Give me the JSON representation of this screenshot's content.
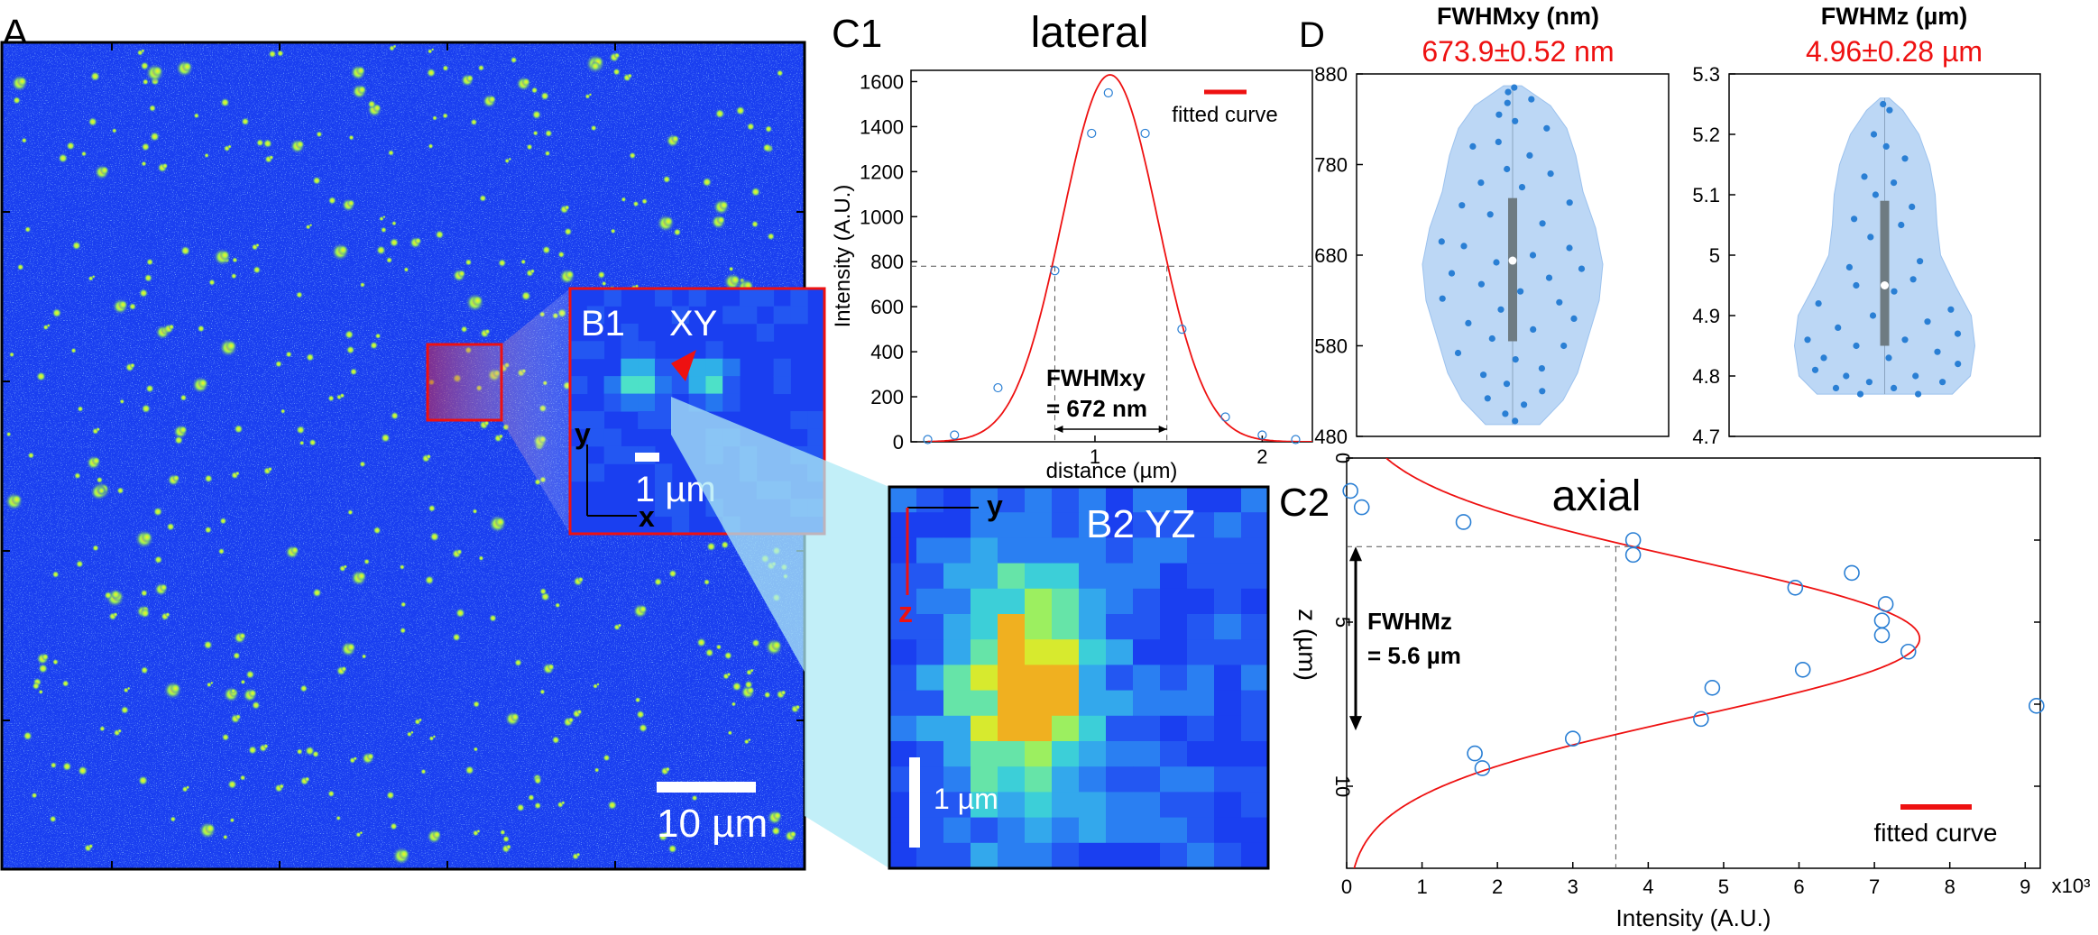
{
  "panels": {
    "a_label": "A",
    "b1_label": "B1",
    "b1_plane": "XY",
    "b1_axis_y": "y",
    "b1_axis_x": "x",
    "b1_scale": "1 µm",
    "b2_label": "B2 YZ",
    "b2_axis_y": "y",
    "b2_axis_z": "z",
    "b2_scale": "1 µm",
    "a_scale": "10 µm",
    "c1_label": "C1",
    "c2_label": "C2",
    "d_label": "D"
  },
  "colors": {
    "image_background": "#1a3ff0",
    "inset_border": "#ee1111",
    "fit_curve": "#ee1111",
    "marker": "#2a7fd4",
    "violin_fill": "#bcd7f5",
    "highlight_text": "#ee1111",
    "box_whisker": "#6e7b82"
  },
  "chart_data": [
    {
      "id": "c1",
      "type": "scatter",
      "title": "lateral",
      "xlabel": "distance (µm)",
      "ylabel": "Intensity (A.U.)",
      "xlim": [
        -0.1,
        2.3
      ],
      "ylim": [
        0,
        1650
      ],
      "xticks": [
        1,
        2
      ],
      "yticks": [
        0,
        200,
        400,
        600,
        800,
        1000,
        1200,
        1400,
        1600
      ],
      "legend": "fitted curve",
      "legend_position": "top-right",
      "half_max": 780,
      "fwhm_left": 0.76,
      "fwhm_right": 1.43,
      "annotation_line1": "FWHMxy",
      "annotation_line2": "= 672 nm",
      "points": [
        {
          "x": 0.0,
          "y": 10
        },
        {
          "x": 0.16,
          "y": 30
        },
        {
          "x": 0.42,
          "y": 240
        },
        {
          "x": 0.76,
          "y": 760
        },
        {
          "x": 0.98,
          "y": 1370
        },
        {
          "x": 1.08,
          "y": 1550
        },
        {
          "x": 1.3,
          "y": 1370
        },
        {
          "x": 1.52,
          "y": 500
        },
        {
          "x": 1.78,
          "y": 110
        },
        {
          "x": 2.0,
          "y": 30
        },
        {
          "x": 2.2,
          "y": 10
        }
      ],
      "fit": {
        "amplitude": 1630,
        "center": 1.09,
        "fwhm": 0.672
      }
    },
    {
      "id": "c2",
      "type": "scatter",
      "title": "axial",
      "xlabel": "Intensity (A.U.)",
      "ylabel": "z (µm)",
      "x_multiplier": "x10³",
      "xlim": [
        0,
        9.2
      ],
      "ylim": [
        0,
        12.5
      ],
      "xticks": [
        0,
        1,
        2,
        3,
        4,
        5,
        6,
        7,
        8,
        9
      ],
      "yticks": [
        0,
        5,
        10
      ],
      "legend": "fitted curve",
      "legend_position": "bottom-right",
      "annotation_line1": "FWHMz",
      "annotation_line2": "= 5.6 µm",
      "fwhm_top": 2.7,
      "fwhm_bottom": 8.3,
      "half_max_x": 3.57,
      "points": [
        {
          "x": 0.05,
          "y": 1.0
        },
        {
          "x": 0.2,
          "y": 1.5
        },
        {
          "x": 1.55,
          "y": 1.95
        },
        {
          "x": 3.8,
          "y": 2.5
        },
        {
          "x": 3.8,
          "y": 2.95
        },
        {
          "x": 6.7,
          "y": 3.5
        },
        {
          "x": 5.95,
          "y": 3.95
        },
        {
          "x": 7.15,
          "y": 4.45
        },
        {
          "x": 7.1,
          "y": 4.95
        },
        {
          "x": 7.1,
          "y": 5.4
        },
        {
          "x": 7.45,
          "y": 5.9
        },
        {
          "x": 6.05,
          "y": 6.45
        },
        {
          "x": 4.85,
          "y": 7.0
        },
        {
          "x": 9.15,
          "y": 7.55
        },
        {
          "x": 4.7,
          "y": 7.95
        },
        {
          "x": 3.0,
          "y": 8.55
        },
        {
          "x": 1.7,
          "y": 9.0
        },
        {
          "x": 1.8,
          "y": 9.45
        }
      ],
      "fit": {
        "amplitude": 7.6,
        "center": 5.5,
        "fwhm": 5.6
      }
    },
    {
      "id": "d1",
      "type": "violin",
      "title": "FWHMxy (nm)",
      "value_text": "673.9±0.52 nm",
      "ylim": [
        480,
        880
      ],
      "yticks": [
        480,
        580,
        680,
        780,
        880
      ],
      "median": 674,
      "q1": 585,
      "q3": 743,
      "min": 493,
      "max": 867,
      "profile": [
        {
          "y": 493,
          "w": 0.3
        },
        {
          "y": 520,
          "w": 0.56
        },
        {
          "y": 550,
          "w": 0.72
        },
        {
          "y": 590,
          "w": 0.84
        },
        {
          "y": 630,
          "w": 0.96
        },
        {
          "y": 670,
          "w": 1.0
        },
        {
          "y": 710,
          "w": 0.92
        },
        {
          "y": 750,
          "w": 0.78
        },
        {
          "y": 790,
          "w": 0.7
        },
        {
          "y": 820,
          "w": 0.6
        },
        {
          "y": 845,
          "w": 0.42
        },
        {
          "y": 867,
          "w": 0.1
        }
      ],
      "points": [
        {
          "x": -0.55,
          "y": 860
        },
        {
          "x": 0.2,
          "y": 865
        },
        {
          "x": -0.15,
          "y": 848
        },
        {
          "x": 0.55,
          "y": 852
        },
        {
          "x": -0.4,
          "y": 835
        },
        {
          "x": 0.05,
          "y": 828
        },
        {
          "x": 0.7,
          "y": 820
        },
        {
          "x": -0.7,
          "y": 800
        },
        {
          "x": -0.25,
          "y": 805
        },
        {
          "x": 0.3,
          "y": 790
        },
        {
          "x": -0.1,
          "y": 775
        },
        {
          "x": 0.6,
          "y": 770
        },
        {
          "x": -0.5,
          "y": 760
        },
        {
          "x": 0.15,
          "y": 755
        },
        {
          "x": 0.9,
          "y": 738
        },
        {
          "x": -0.8,
          "y": 735
        },
        {
          "x": -0.3,
          "y": 725
        },
        {
          "x": 0.4,
          "y": 715
        },
        {
          "x": 0.0,
          "y": 705
        },
        {
          "x": -0.95,
          "y": 695
        },
        {
          "x": -0.6,
          "y": 690
        },
        {
          "x": 0.7,
          "y": 688
        },
        {
          "x": 0.25,
          "y": 680
        },
        {
          "x": -0.2,
          "y": 672
        },
        {
          "x": 0.85,
          "y": 665
        },
        {
          "x": -0.75,
          "y": 660
        },
        {
          "x": 0.45,
          "y": 655
        },
        {
          "x": -0.4,
          "y": 648
        },
        {
          "x": 0.1,
          "y": 640
        },
        {
          "x": -0.9,
          "y": 632
        },
        {
          "x": 0.6,
          "y": 628
        },
        {
          "x": -0.15,
          "y": 620
        },
        {
          "x": 0.9,
          "y": 610
        },
        {
          "x": -0.65,
          "y": 605
        },
        {
          "x": 0.3,
          "y": 598
        },
        {
          "x": -0.3,
          "y": 588
        },
        {
          "x": 0.75,
          "y": 580
        },
        {
          "x": -0.8,
          "y": 572
        },
        {
          "x": 0.05,
          "y": 565
        },
        {
          "x": 0.5,
          "y": 555
        },
        {
          "x": -0.5,
          "y": 548
        },
        {
          "x": -0.1,
          "y": 538
        },
        {
          "x": 0.65,
          "y": 530
        },
        {
          "x": -0.55,
          "y": 522
        },
        {
          "x": 0.25,
          "y": 515
        },
        {
          "x": -0.3,
          "y": 505
        },
        {
          "x": 0.1,
          "y": 497
        }
      ]
    },
    {
      "id": "d2",
      "type": "violin",
      "title": "FWHMz (µm)",
      "value_text": "4.96±0.28 µm",
      "ylim": [
        4.7,
        5.3
      ],
      "yticks": [
        4.7,
        4.8,
        4.9,
        5.0,
        5.1,
        5.2,
        5.3
      ],
      "ytick_labels": [
        "4.7",
        "4.8",
        "4.9",
        "5",
        "5.1",
        "5.2",
        "5.3"
      ],
      "median": 4.95,
      "q1": 4.85,
      "q3": 5.09,
      "min": 4.77,
      "max": 5.26,
      "profile": [
        {
          "y": 4.77,
          "w": 0.75
        },
        {
          "y": 4.8,
          "w": 0.95
        },
        {
          "y": 4.85,
          "w": 1.0
        },
        {
          "y": 4.9,
          "w": 0.96
        },
        {
          "y": 4.95,
          "w": 0.78
        },
        {
          "y": 5.0,
          "w": 0.62
        },
        {
          "y": 5.05,
          "w": 0.58
        },
        {
          "y": 5.1,
          "w": 0.56
        },
        {
          "y": 5.15,
          "w": 0.5
        },
        {
          "y": 5.2,
          "w": 0.38
        },
        {
          "y": 5.24,
          "w": 0.2
        },
        {
          "y": 5.26,
          "w": 0.05
        }
      ],
      "points": [
        {
          "x": -0.1,
          "y": 5.25
        },
        {
          "x": 0.3,
          "y": 5.24
        },
        {
          "x": -0.35,
          "y": 5.2
        },
        {
          "x": 0.05,
          "y": 5.18
        },
        {
          "x": 0.5,
          "y": 5.16
        },
        {
          "x": -0.5,
          "y": 5.13
        },
        {
          "x": 0.2,
          "y": 5.12
        },
        {
          "x": -0.2,
          "y": 5.1
        },
        {
          "x": 0.6,
          "y": 5.08
        },
        {
          "x": -0.65,
          "y": 5.06
        },
        {
          "x": 0.35,
          "y": 5.05
        },
        {
          "x": -0.3,
          "y": 5.03
        },
        {
          "x": 0.0,
          "y": 5.01
        },
        {
          "x": 0.7,
          "y": 4.99
        },
        {
          "x": -0.7,
          "y": 4.98
        },
        {
          "x": 0.45,
          "y": 4.96
        },
        {
          "x": -0.45,
          "y": 4.95
        },
        {
          "x": 0.15,
          "y": 4.94
        },
        {
          "x": -0.85,
          "y": 4.92
        },
        {
          "x": 0.85,
          "y": 4.91
        },
        {
          "x": -0.15,
          "y": 4.9
        },
        {
          "x": 0.55,
          "y": 4.89
        },
        {
          "x": -0.6,
          "y": 4.88
        },
        {
          "x": 0.9,
          "y": 4.87
        },
        {
          "x": -0.95,
          "y": 4.86
        },
        {
          "x": 0.25,
          "y": 4.86
        },
        {
          "x": -0.35,
          "y": 4.85
        },
        {
          "x": 0.65,
          "y": 4.84
        },
        {
          "x": -0.75,
          "y": 4.83
        },
        {
          "x": 0.05,
          "y": 4.83
        },
        {
          "x": 0.95,
          "y": 4.82
        },
        {
          "x": -0.9,
          "y": 4.81
        },
        {
          "x": 0.4,
          "y": 4.8
        },
        {
          "x": -0.5,
          "y": 4.8
        },
        {
          "x": 0.75,
          "y": 4.79
        },
        {
          "x": -0.2,
          "y": 4.79
        },
        {
          "x": 0.15,
          "y": 4.78
        },
        {
          "x": -0.8,
          "y": 4.78
        },
        {
          "x": 0.55,
          "y": 4.77
        },
        {
          "x": -0.4,
          "y": 4.77
        }
      ]
    }
  ]
}
